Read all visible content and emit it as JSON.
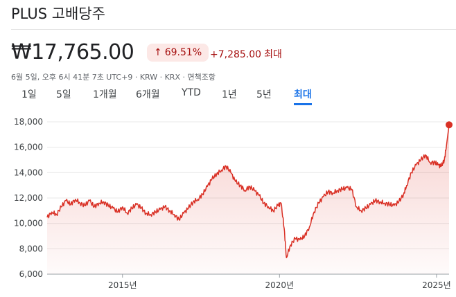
{
  "header": {
    "title": "PLUS 고배당주",
    "price": "₩17,765.00",
    "change_pct": "69.51%",
    "change_abs": "+7,285.00",
    "change_period": "최대",
    "meta": "6월 5일, 오후 6시 41분 7초 UTC+9 · KRW · KRX · 면책조항"
  },
  "tabs": [
    {
      "label": "1일"
    },
    {
      "label": "5일"
    },
    {
      "label": "1개월"
    },
    {
      "label": "6개월"
    },
    {
      "label": "YTD"
    },
    {
      "label": "1년"
    },
    {
      "label": "5년"
    },
    {
      "label": "최대",
      "active": true
    }
  ],
  "colors": {
    "line": "#d93025",
    "fill": "#fce8e6",
    "active_tab": "#1a73e8",
    "change": "#a50e0e"
  },
  "chart_data": {
    "type": "area",
    "x_start": 2012.6,
    "x_end": 2025.4,
    "ylim": [
      6000,
      18000
    ],
    "yticks": [
      6000,
      8000,
      10000,
      12000,
      14000,
      16000,
      18000
    ],
    "ytick_labels": [
      "6,000",
      "8,000",
      "10,000",
      "12,000",
      "14,000",
      "16,000",
      "18,000"
    ],
    "xticks": [
      2015,
      2020,
      2025
    ],
    "xtick_labels": [
      "2015년",
      "2020년",
      "2025년"
    ],
    "grid": "horizontal",
    "series": [
      {
        "points": [
          [
            2012.6,
            10480
          ],
          [
            2012.75,
            10900
          ],
          [
            2012.9,
            10700
          ],
          [
            2013.05,
            11300
          ],
          [
            2013.2,
            11800
          ],
          [
            2013.35,
            11500
          ],
          [
            2013.5,
            11900
          ],
          [
            2013.65,
            11600
          ],
          [
            2013.8,
            11400
          ],
          [
            2013.95,
            11800
          ],
          [
            2014.1,
            11300
          ],
          [
            2014.25,
            11600
          ],
          [
            2014.4,
            11700
          ],
          [
            2014.55,
            11400
          ],
          [
            2014.7,
            11200
          ],
          [
            2014.85,
            10900
          ],
          [
            2015.0,
            11300
          ],
          [
            2015.15,
            10800
          ],
          [
            2015.3,
            11200
          ],
          [
            2015.45,
            11500
          ],
          [
            2015.6,
            11200
          ],
          [
            2015.75,
            10800
          ],
          [
            2015.9,
            10700
          ],
          [
            2016.05,
            10900
          ],
          [
            2016.2,
            11100
          ],
          [
            2016.35,
            11300
          ],
          [
            2016.5,
            11000
          ],
          [
            2016.65,
            10700
          ],
          [
            2016.8,
            10300
          ],
          [
            2016.95,
            10800
          ],
          [
            2017.1,
            11200
          ],
          [
            2017.25,
            11700
          ],
          [
            2017.4,
            11900
          ],
          [
            2017.55,
            12300
          ],
          [
            2017.7,
            12900
          ],
          [
            2017.85,
            13500
          ],
          [
            2018.0,
            13900
          ],
          [
            2018.15,
            14200
          ],
          [
            2018.3,
            14500
          ],
          [
            2018.45,
            14000
          ],
          [
            2018.6,
            13300
          ],
          [
            2018.75,
            13000
          ],
          [
            2018.9,
            12600
          ],
          [
            2019.05,
            12900
          ],
          [
            2019.2,
            12600
          ],
          [
            2019.35,
            12200
          ],
          [
            2019.5,
            11600
          ],
          [
            2019.65,
            11300
          ],
          [
            2019.8,
            11000
          ],
          [
            2019.95,
            11400
          ],
          [
            2020.05,
            11600
          ],
          [
            2020.15,
            9600
          ],
          [
            2020.22,
            7300
          ],
          [
            2020.35,
            8300
          ],
          [
            2020.5,
            8800
          ],
          [
            2020.65,
            8700
          ],
          [
            2020.8,
            9000
          ],
          [
            2020.95,
            9700
          ],
          [
            2021.1,
            10900
          ],
          [
            2021.25,
            11600
          ],
          [
            2021.4,
            12100
          ],
          [
            2021.55,
            12500
          ],
          [
            2021.7,
            12400
          ],
          [
            2021.85,
            12600
          ],
          [
            2022.0,
            12700
          ],
          [
            2022.15,
            12800
          ],
          [
            2022.3,
            12700
          ],
          [
            2022.45,
            11300
          ],
          [
            2022.6,
            11000
          ],
          [
            2022.75,
            11200
          ],
          [
            2022.9,
            11500
          ],
          [
            2023.05,
            11800
          ],
          [
            2023.2,
            11700
          ],
          [
            2023.35,
            11600
          ],
          [
            2023.5,
            11500
          ],
          [
            2023.65,
            11400
          ],
          [
            2023.8,
            11700
          ],
          [
            2023.95,
            12300
          ],
          [
            2024.05,
            13000
          ],
          [
            2024.2,
            14000
          ],
          [
            2024.35,
            14600
          ],
          [
            2024.5,
            15000
          ],
          [
            2024.65,
            15400
          ],
          [
            2024.8,
            14800
          ],
          [
            2024.95,
            14800
          ],
          [
            2025.05,
            14600
          ],
          [
            2025.15,
            14500
          ],
          [
            2025.25,
            15000
          ],
          [
            2025.32,
            16200
          ],
          [
            2025.4,
            17765
          ]
        ]
      }
    ]
  }
}
